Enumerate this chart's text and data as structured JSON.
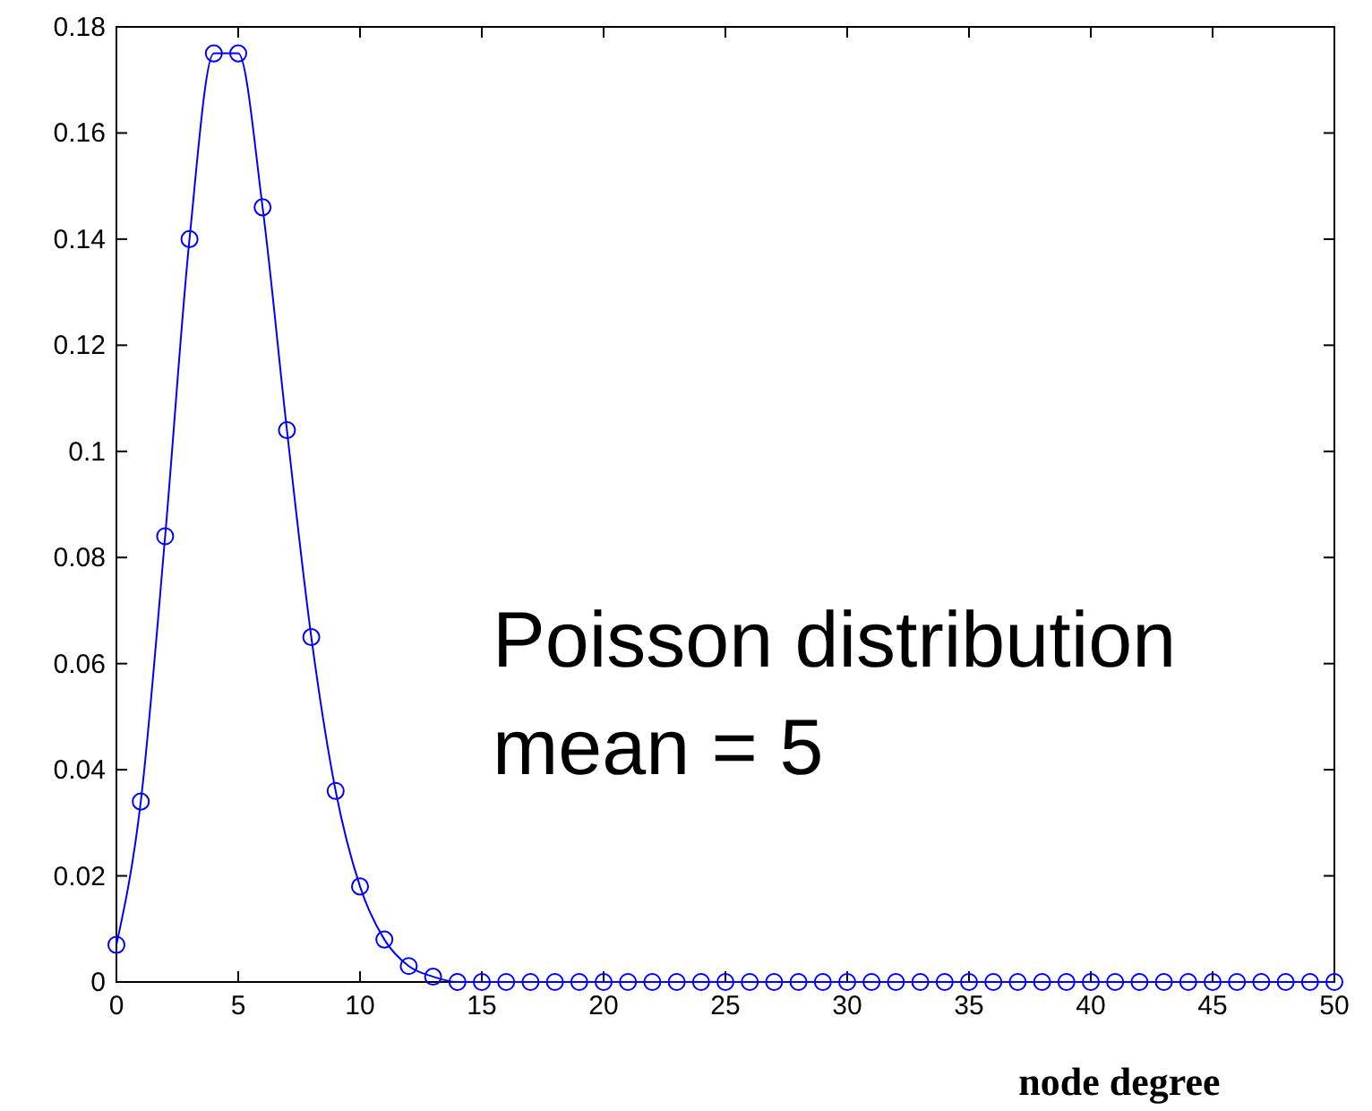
{
  "chart_data": {
    "type": "line",
    "xlabel": "node degree",
    "annotations": [
      "Poisson distribution",
      "mean = 5"
    ],
    "x": [
      0,
      1,
      2,
      3,
      4,
      5,
      6,
      7,
      8,
      9,
      10,
      11,
      12,
      13,
      14,
      15,
      16,
      17,
      18,
      19,
      20,
      21,
      22,
      23,
      24,
      25,
      26,
      27,
      28,
      29,
      30,
      31,
      32,
      33,
      34,
      35,
      36,
      37,
      38,
      39,
      40,
      41,
      42,
      43,
      44,
      45,
      46,
      47,
      48,
      49,
      50
    ],
    "series": [
      {
        "color": "#0000ff",
        "values": [
          0.007,
          0.034,
          0.084,
          0.14,
          0.175,
          0.175,
          0.146,
          0.104,
          0.065,
          0.036,
          0.018,
          0.008,
          0.003,
          0.001,
          0,
          0,
          0,
          0,
          0,
          0,
          0,
          0,
          0,
          0,
          0,
          0,
          0,
          0,
          0,
          0,
          0,
          0,
          0,
          0,
          0,
          0,
          0,
          0,
          0,
          0,
          0,
          0,
          0,
          0,
          0,
          0,
          0,
          0,
          0,
          0,
          0
        ]
      }
    ],
    "xlim": [
      0,
      50
    ],
    "xticks": [
      0,
      5,
      10,
      15,
      20,
      25,
      30,
      35,
      40,
      45,
      50
    ],
    "ylim": [
      0,
      0.18
    ],
    "yticks": [
      0,
      0.02,
      0.04,
      0.06,
      0.08,
      0.1,
      0.12,
      0.14,
      0.16,
      0.18
    ],
    "marker": "circle",
    "line_style": "solid"
  }
}
